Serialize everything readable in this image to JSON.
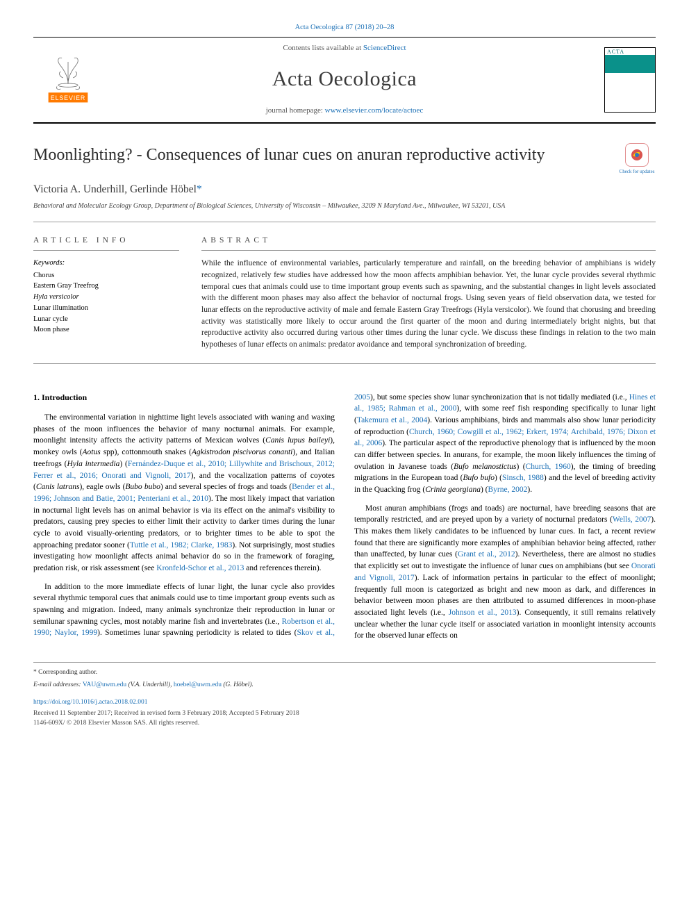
{
  "citation": "Acta Oecologica 87 (2018) 20–28",
  "masthead": {
    "contents_prefix": "Contents lists available at ",
    "contents_link": "ScienceDirect",
    "journal": "Acta Oecologica",
    "homepage_prefix": "journal homepage: ",
    "homepage_link": "www.elsevier.com/locate/actoec",
    "cover_label": "ACTA OECOLOGICA"
  },
  "title": "Moonlighting? - Consequences of lunar cues on anuran reproductive activity",
  "check_updates": "Check for updates",
  "authors": "Victoria A. Underhill, Gerlinde Höbel",
  "corr_mark": "*",
  "affiliation": "Behavioral and Molecular Ecology Group, Department of Biological Sciences, University of Wisconsin – Milwaukee, 3209 N Maryland Ave., Milwaukee, WI 53201, USA",
  "article_info_heading": "ARTICLE INFO",
  "abstract_heading": "ABSTRACT",
  "keywords_label": "Keywords:",
  "keywords": [
    "Chorus",
    "Eastern Gray Treefrog",
    "Hyla versicolor",
    "Lunar illumination",
    "Lunar cycle",
    "Moon phase"
  ],
  "abstract": "While the influence of environmental variables, particularly temperature and rainfall, on the breeding behavior of amphibians is widely recognized, relatively few studies have addressed how the moon affects amphibian behavior. Yet, the lunar cycle provides several rhythmic temporal cues that animals could use to time important group events such as spawning, and the substantial changes in light levels associated with the different moon phases may also affect the behavior of nocturnal frogs. Using seven years of field observation data, we tested for lunar effects on the reproductive activity of male and female Eastern Gray Treefrogs (Hyla versicolor). We found that chorusing and breeding activity was statistically more likely to occur around the first quarter of the moon and during intermediately bright nights, but that reproductive activity also occurred during various other times during the lunar cycle. We discuss these findings in relation to the two main hypotheses of lunar effects on animals: predator avoidance and temporal synchronization of breeding.",
  "intro_heading": "1. Introduction",
  "intro_paragraphs": [
    {
      "segments": [
        {
          "t": "The environmental variation in nighttime light levels associated with waning and waxing phases of the moon influences the behavior of many nocturnal animals. For example, moonlight intensity affects the activity patterns of Mexican wolves ("
        },
        {
          "t": "Canis lupus baileyi",
          "cls": "species"
        },
        {
          "t": "), monkey owls ("
        },
        {
          "t": "Aotus",
          "cls": "species"
        },
        {
          "t": " spp), cottonmouth snakes ("
        },
        {
          "t": "Agkistrodon piscivorus conanti",
          "cls": "species"
        },
        {
          "t": "), and Italian treefrogs ("
        },
        {
          "t": "Hyla intermedia",
          "cls": "species"
        },
        {
          "t": ") ("
        },
        {
          "t": "Fernández-Duque et al., 2010; Lillywhite and Brischoux, 2012; Ferrer et al., 2016; Onorati and Vignoli, 2017",
          "cls": "ref-link"
        },
        {
          "t": "), and the vocalization patterns of coyotes ("
        },
        {
          "t": "Canis latrans",
          "cls": "species"
        },
        {
          "t": "), eagle owls ("
        },
        {
          "t": "Bubo bubo",
          "cls": "species"
        },
        {
          "t": ") and several species of frogs and toads ("
        },
        {
          "t": "Bender et al., 1996; Johnson and Batie, 2001; Penteriani et al., 2010",
          "cls": "ref-link"
        },
        {
          "t": "). The most likely impact that variation in nocturnal light levels has on animal behavior is via its effect on the animal's visibility to predators, causing prey species to either limit their activity to darker times during the lunar cycle to avoid visually-orienting predators, or to brighter times to be able to spot the approaching predator sooner ("
        },
        {
          "t": "Tuttle et al., 1982; Clarke, 1983",
          "cls": "ref-link"
        },
        {
          "t": "). Not surprisingly, most studies investigating how moonlight affects animal behavior do so in the framework of foraging, predation risk, or risk assessment (see "
        },
        {
          "t": "Kronfeld-Schor et al., 2013",
          "cls": "ref-link"
        },
        {
          "t": " and references therein)."
        }
      ]
    },
    {
      "segments": [
        {
          "t": "In addition to the more immediate effects of lunar light, the lunar cycle also provides several rhythmic temporal cues that animals could use to time important group events such as spawning and migration. Indeed, many animals synchronize their reproduction in lunar or semilunar spawning cycles, most notably marine fish and invertebrates (i.e., "
        },
        {
          "t": "Robertson et al., 1990; Naylor, 1999",
          "cls": "ref-link"
        },
        {
          "t": "). Sometimes lunar spawning periodicity is related to tides ("
        },
        {
          "t": "Skov et al., 2005",
          "cls": "ref-link"
        },
        {
          "t": "), but some species show lunar synchronization that is not tidally mediated (i.e., "
        },
        {
          "t": "Hines et al., 1985; Rahman et al., 2000",
          "cls": "ref-link"
        },
        {
          "t": "), with some reef fish responding specifically to lunar light ("
        },
        {
          "t": "Takemura et al., 2004",
          "cls": "ref-link"
        },
        {
          "t": "). Various amphibians, birds and mammals also show lunar periodicity of reproduction ("
        },
        {
          "t": "Church, 1960; Cowgill et al., 1962; Erkert, 1974; Archibald, 1976; Dixon et al., 2006",
          "cls": "ref-link"
        },
        {
          "t": "). The particular aspect of the reproductive phenology that is influenced by the moon can differ between species. In anurans, for example, the moon likely influences the timing of ovulation in Javanese toads ("
        },
        {
          "t": "Bufo melanostictus",
          "cls": "species"
        },
        {
          "t": ") ("
        },
        {
          "t": "Church, 1960",
          "cls": "ref-link"
        },
        {
          "t": "), the timing of breeding migrations in the European toad ("
        },
        {
          "t": "Bufo bufo",
          "cls": "species"
        },
        {
          "t": ") ("
        },
        {
          "t": "Sinsch, 1988",
          "cls": "ref-link"
        },
        {
          "t": ") and the level of breeding activity in the Quacking frog ("
        },
        {
          "t": "Crinia georgiana",
          "cls": "species"
        },
        {
          "t": ") ("
        },
        {
          "t": "Byrne, 2002",
          "cls": "ref-link"
        },
        {
          "t": ")."
        }
      ]
    },
    {
      "segments": [
        {
          "t": "Most anuran amphibians (frogs and toads) are nocturnal, have breeding seasons that are temporally restricted, and are preyed upon by a variety of nocturnal predators ("
        },
        {
          "t": "Wells, 2007",
          "cls": "ref-link"
        },
        {
          "t": "). This makes them likely candidates to be influenced by lunar cues. In fact, a recent review found that there are significantly more examples of amphibian behavior being affected, rather than unaffected, by lunar cues ("
        },
        {
          "t": "Grant et al., 2012",
          "cls": "ref-link"
        },
        {
          "t": "). Nevertheless, there are almost no studies that explicitly set out to investigate the influence of lunar cues on amphibians (but see "
        },
        {
          "t": "Onorati and Vignoli, 2017",
          "cls": "ref-link"
        },
        {
          "t": "). Lack of information pertains in particular to the effect of moonlight; frequently full moon is categorized as bright and new moon as dark, and differences in behavior between moon phases are then attributed to assumed differences in moon-phase associated light levels (i.e., "
        },
        {
          "t": "Johnson et al., 2013",
          "cls": "ref-link"
        },
        {
          "t": "). Consequently, it still remains relatively unclear whether the lunar cycle itself or associated variation in moonlight intensity accounts for the observed lunar effects on"
        }
      ]
    }
  ],
  "footer": {
    "corr": "* Corresponding author.",
    "emails_label": "E-mail addresses: ",
    "email1": "VAU@uwm.edu",
    "email1_who": " (V.A. Underhill), ",
    "email2": "hoebel@uwm.edu",
    "email2_who": " (G. Höbel).",
    "doi": "https://doi.org/10.1016/j.actao.2018.02.001",
    "dates": "Received 11 September 2017; Received in revised form 3 February 2018; Accepted 5 February 2018",
    "copyright": "1146-609X/ © 2018 Elsevier Masson SAS. All rights reserved."
  }
}
